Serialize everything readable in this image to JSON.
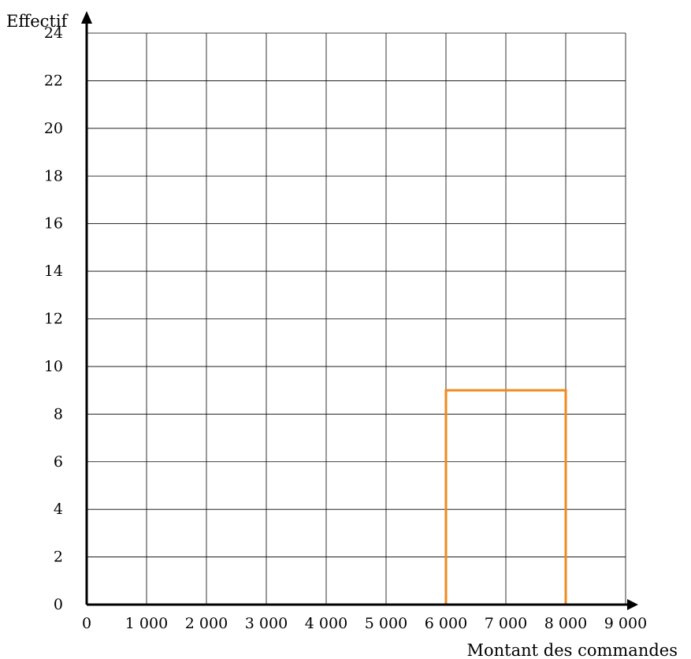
{
  "chart_data": {
    "type": "bar",
    "title": "",
    "xlabel": "Montant des commandes",
    "ylabel": "Effectif",
    "xlim": [
      0,
      9000
    ],
    "ylim": [
      0,
      24
    ],
    "x_ticks": [
      0,
      1000,
      2000,
      3000,
      4000,
      5000,
      6000,
      7000,
      8000,
      9000
    ],
    "x_tick_labels": [
      "0",
      "1 000",
      "2 000",
      "3 000",
      "4 000",
      "5 000",
      "6 000",
      "7 000",
      "8 000",
      "9 000"
    ],
    "y_ticks": [
      0,
      2,
      4,
      6,
      8,
      10,
      12,
      14,
      16,
      18,
      20,
      22,
      24
    ],
    "y_tick_labels": [
      "0",
      "2",
      "4",
      "6",
      "8",
      "10",
      "12",
      "14",
      "16",
      "18",
      "20",
      "22",
      "24"
    ],
    "x_grid_step": 1000,
    "y_grid_step": 2,
    "grid": true,
    "bars": [
      {
        "x_start": 6000,
        "x_end": 8000,
        "value": 9
      }
    ],
    "colors": {
      "bar_outline": "#f08a1c",
      "grid": "#000000",
      "axes": "#000000"
    }
  }
}
